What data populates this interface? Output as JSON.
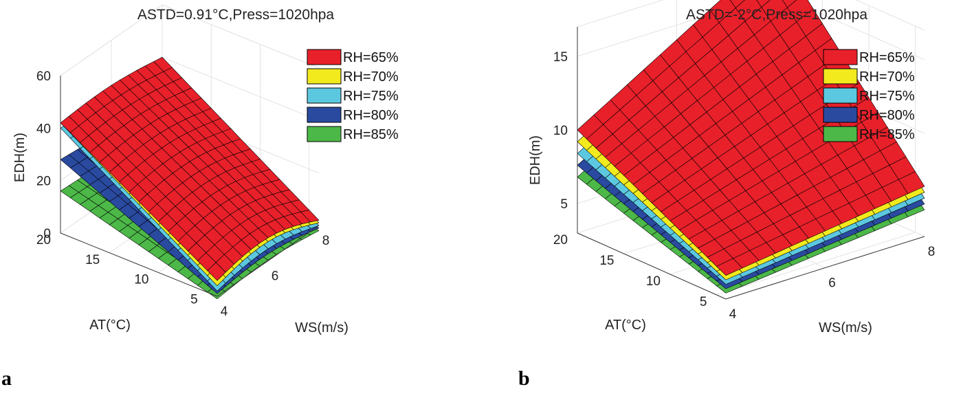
{
  "figure": {
    "panel_letters": [
      "a",
      "b"
    ]
  },
  "chart_data": [
    {
      "type": "surface3d",
      "title": "ASTD=0.91°C,Press=1020hpa",
      "xlabel": "WS(m/s)",
      "ylabel": "AT(°C)",
      "zlabel": "EDH(m)",
      "xlim": [
        4,
        8
      ],
      "ylim": [
        4,
        20
      ],
      "zlim": [
        0,
        60
      ],
      "xticks": [
        "4",
        "6",
        "8"
      ],
      "yticks": [
        "5",
        "10",
        "15",
        "20"
      ],
      "zticks": [
        "0",
        "20",
        "40",
        "60"
      ],
      "legend_position": "top-right",
      "series": [
        {
          "name": "RH=65%",
          "color": "#e8202a",
          "edges": {
            "near_at20": [
              42,
              48
            ],
            "near_at4": [
              6,
              22
            ],
            "far_at20": [
              40,
              44
            ],
            "far_at4": [
              2,
              5
            ]
          }
        },
        {
          "name": "RH=70%",
          "color": "#f2ea1d",
          "edges": {
            "near_at20": [
              42,
              46
            ],
            "near_at4": [
              4,
              20
            ],
            "far_at20": [
              40,
              42
            ],
            "far_at4": [
              1,
              4
            ]
          }
        },
        {
          "name": "RH=75%",
          "color": "#5cc8e0",
          "edges": {
            "near_at20": [
              40,
              40
            ],
            "near_at4": [
              2,
              14
            ],
            "far_at20": [
              35,
              35
            ],
            "far_at4": [
              0,
              3
            ]
          }
        },
        {
          "name": "RH=80%",
          "color": "#2a4aa0",
          "edges": {
            "near_at20": [
              28,
              28
            ],
            "near_at4": [
              1,
              10
            ],
            "far_at20": [
              24,
              24
            ],
            "far_at4": [
              -1,
              2
            ]
          }
        },
        {
          "name": "RH=85%",
          "color": "#4cb848",
          "edges": {
            "near_at20": [
              16,
              16
            ],
            "near_at4": [
              -1,
              5
            ],
            "far_at20": [
              14,
              14
            ],
            "far_at4": [
              -2,
              1
            ]
          }
        }
      ]
    },
    {
      "type": "surface3d",
      "title": "ASTD=-2°C,Press=1020hpa",
      "xlabel": "WS(m/s)",
      "ylabel": "AT(°C)",
      "zlabel": "EDH(m)",
      "xlim": [
        4,
        8
      ],
      "ylim": [
        4,
        20
      ],
      "zlim": [
        3,
        17
      ],
      "xticks": [
        "4",
        "6",
        "8"
      ],
      "yticks": [
        "5",
        "10",
        "15",
        "20"
      ],
      "zticks": [
        "5",
        "10",
        "15"
      ],
      "legend_position": "top-right",
      "series": [
        {
          "name": "RH=65%",
          "color": "#e8202a",
          "corners": [
            10.0,
            18.0,
            4.6,
            6.4
          ]
        },
        {
          "name": "RH=70%",
          "color": "#f2ea1d",
          "corners": [
            9.2,
            17.2,
            4.3,
            6.0
          ]
        },
        {
          "name": "RH=75%",
          "color": "#5cc8e0",
          "corners": [
            8.4,
            16.4,
            4.0,
            5.6
          ]
        },
        {
          "name": "RH=80%",
          "color": "#2a4aa0",
          "corners": [
            7.6,
            15.6,
            3.7,
            5.2
          ]
        },
        {
          "name": "RH=85%",
          "color": "#4cb848",
          "corners": [
            6.8,
            14.8,
            3.4,
            4.8
          ]
        }
      ]
    }
  ]
}
